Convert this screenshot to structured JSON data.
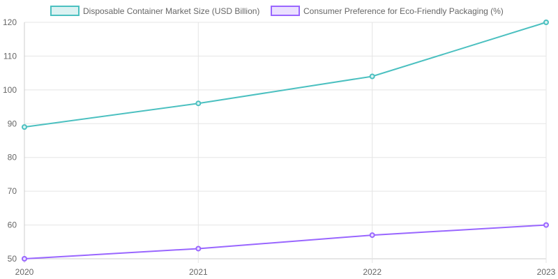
{
  "chart_data": {
    "type": "line",
    "categories": [
      "2020",
      "2021",
      "2022",
      "2023"
    ],
    "series": [
      {
        "name": "Disposable Container Market Size (USD Billion)",
        "values": [
          89,
          96,
          104,
          120
        ],
        "color": "#4bc0c0",
        "fill": "#dbf2f2"
      },
      {
        "name": "Consumer Preference for Eco-Friendly Packaging (%)",
        "values": [
          50,
          53,
          57,
          60
        ],
        "color": "#9966ff",
        "fill": "#ebe0ff"
      }
    ],
    "ylim": [
      50,
      120
    ],
    "yticks": [
      "50",
      "60",
      "70",
      "80",
      "90",
      "100",
      "110",
      "120"
    ],
    "grid": true,
    "legend": "top"
  }
}
